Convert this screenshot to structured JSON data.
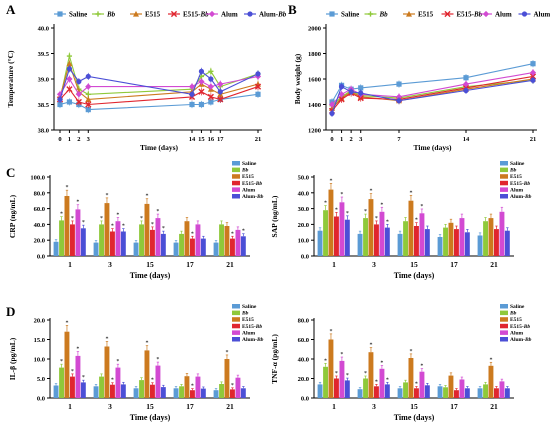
{
  "panel_labels": [
    "A",
    "B",
    "C",
    "D"
  ],
  "groups": [
    "Saline",
    "Bb",
    "E515",
    "E515-Bb",
    "Alum",
    "Alum-Bb"
  ],
  "group_labels": [
    {
      "main": "Saline",
      "italic": ""
    },
    {
      "main": "",
      "italic": "Bb"
    },
    {
      "main": "E515",
      "italic": ""
    },
    {
      "main": "E515-",
      "italic": "Bb"
    },
    {
      "main": "Alum",
      "italic": ""
    },
    {
      "main": "Alum-",
      "italic": "Bb"
    }
  ],
  "colors": {
    "Saline": "#5b9bd5",
    "Bb": "#8fc93a",
    "E515": "#cc7a1f",
    "E515-Bb": "#e0262f",
    "Alum": "#d24ad2",
    "Alum-Bb": "#4b4fd6"
  },
  "chart_data": [
    {
      "id": "temperature",
      "panel": "A",
      "type": "line",
      "xlabel": "Time (days)",
      "ylabel": "Temperature (°C)",
      "x_ticks": [
        "0",
        "1",
        "2",
        "3",
        "14",
        "15",
        "16",
        "17",
        "21"
      ],
      "x_positions": [
        0,
        1,
        2,
        3,
        14,
        15,
        16,
        17,
        21
      ],
      "ylim": [
        38.0,
        40.0
      ],
      "y_ticks": [
        "38.0",
        "38.5",
        "39.0",
        "39.5",
        "40.0"
      ],
      "legend": "top",
      "series": [
        {
          "name": "Saline",
          "values": [
            38.5,
            38.55,
            38.5,
            38.4,
            38.5,
            38.5,
            38.55,
            38.6,
            38.7
          ]
        },
        {
          "name": "Bb",
          "values": [
            38.6,
            39.45,
            38.8,
            38.7,
            38.8,
            39.05,
            39.15,
            38.85,
            39.1
          ]
        },
        {
          "name": "E515",
          "values": [
            38.65,
            39.3,
            38.75,
            38.6,
            38.75,
            38.9,
            38.8,
            38.7,
            38.9
          ]
        },
        {
          "name": "E515-Bb",
          "values": [
            38.6,
            38.8,
            38.55,
            38.5,
            38.65,
            38.75,
            38.65,
            38.6,
            38.85
          ]
        },
        {
          "name": "Alum",
          "values": [
            38.7,
            39.0,
            38.7,
            38.85,
            38.85,
            38.95,
            38.85,
            38.9,
            39.05
          ]
        },
        {
          "name": "Alum-Bb",
          "values": [
            38.6,
            39.2,
            38.95,
            39.05,
            38.7,
            39.15,
            39.0,
            38.75,
            39.1
          ]
        }
      ]
    },
    {
      "id": "body-weight",
      "panel": "B",
      "type": "line",
      "xlabel": "Time (days)",
      "ylabel": "Body weight (g)",
      "x_ticks": [
        "0",
        "1",
        "2",
        "3",
        "7",
        "14",
        "21"
      ],
      "x_positions": [
        0,
        1,
        2,
        3,
        7,
        14,
        21
      ],
      "ylim": [
        1200,
        2000
      ],
      "y_ticks": [
        "1200",
        "1400",
        "1600",
        "1800",
        "2000"
      ],
      "legend": "top",
      "series": [
        {
          "name": "Saline",
          "values": [
            1420,
            1550,
            1520,
            1530,
            1560,
            1610,
            1720
          ]
        },
        {
          "name": "Bb",
          "values": [
            1390,
            1460,
            1510,
            1470,
            1450,
            1540,
            1590
          ]
        },
        {
          "name": "E515",
          "values": [
            1370,
            1450,
            1500,
            1460,
            1430,
            1520,
            1600
          ]
        },
        {
          "name": "E515-Bb",
          "values": [
            1350,
            1440,
            1490,
            1450,
            1440,
            1530,
            1620
          ]
        },
        {
          "name": "Alum",
          "values": [
            1400,
            1480,
            1520,
            1480,
            1460,
            1560,
            1650
          ]
        },
        {
          "name": "Alum-Bb",
          "values": [
            1330,
            1540,
            1500,
            1490,
            1430,
            1510,
            1590
          ]
        }
      ]
    },
    {
      "id": "crp",
      "panel": "C",
      "type": "bar",
      "xlabel": "Time (days)",
      "ylabel": "CRP (ng/mL)",
      "categories": [
        "1",
        "3",
        "15",
        "17",
        "21"
      ],
      "ylim": [
        0,
        100
      ],
      "y_ticks": [
        "0.0",
        "20.0",
        "40.0",
        "60.0",
        "80.0",
        "100.0"
      ],
      "legend": "top-right",
      "series": [
        {
          "name": "Saline",
          "values": [
            18,
            17,
            17,
            17,
            17
          ]
        },
        {
          "name": "Bb",
          "values": [
            45,
            40,
            40,
            28,
            40
          ]
        },
        {
          "name": "E515",
          "values": [
            76,
            67,
            66,
            44,
            38
          ]
        },
        {
          "name": "E515-Bb",
          "values": [
            40,
            31,
            33,
            22,
            22
          ]
        },
        {
          "name": "Alum",
          "values": [
            59,
            44,
            48,
            40,
            33
          ]
        },
        {
          "name": "Alum-Bb",
          "values": [
            35,
            31,
            28,
            22,
            25
          ]
        }
      ],
      "marked": [
        [
          1,
          2,
          3,
          4,
          5
        ],
        [
          1,
          2,
          3,
          4,
          5
        ],
        [
          1,
          2,
          3,
          4,
          5
        ],
        [
          3
        ],
        [
          3,
          5
        ]
      ]
    },
    {
      "id": "sap",
      "panel": "C",
      "type": "bar",
      "xlabel": "Time (days)",
      "ylabel": "SAP (ng/mL)",
      "categories": [
        "1",
        "3",
        "15",
        "17",
        "21"
      ],
      "ylim": [
        0,
        50
      ],
      "y_ticks": [
        "0.0",
        "10.0",
        "20.0",
        "30.0",
        "40.0",
        "50.0"
      ],
      "legend": "top-right",
      "series": [
        {
          "name": "Saline",
          "values": [
            16,
            14,
            14,
            12,
            13
          ]
        },
        {
          "name": "Bb",
          "values": [
            29,
            24,
            22,
            18,
            22
          ]
        },
        {
          "name": "E515",
          "values": [
            42,
            36,
            35,
            21,
            24
          ]
        },
        {
          "name": "E515-Bb",
          "values": [
            25,
            20,
            19,
            17,
            17
          ]
        },
        {
          "name": "Alum",
          "values": [
            34,
            28,
            27,
            24,
            28
          ]
        },
        {
          "name": "Alum-Bb",
          "values": [
            23,
            18,
            17,
            15,
            16
          ]
        }
      ],
      "marked": [
        [
          1,
          2,
          3,
          4,
          5
        ],
        [
          1,
          2,
          3,
          4,
          5
        ],
        [
          2,
          3,
          4
        ],
        [],
        []
      ]
    },
    {
      "id": "il-beta",
      "panel": "D",
      "type": "bar",
      "xlabel": "Time (days)",
      "ylabel": "IL-β (pg/mL)",
      "categories": [
        "1",
        "3",
        "15",
        "17",
        "21"
      ],
      "ylim": [
        0,
        20
      ],
      "y_ticks": [
        "0.0",
        "5.0",
        "10.0",
        "15.0",
        "20.0"
      ],
      "legend": "top-right",
      "series": [
        {
          "name": "Saline",
          "values": [
            3.2,
            3.0,
            2.5,
            2.5,
            2.0
          ]
        },
        {
          "name": "Bb",
          "values": [
            7.8,
            5.5,
            4.6,
            3.0,
            3.6
          ]
        },
        {
          "name": "E515",
          "values": [
            17.0,
            13.2,
            12.2,
            5.6,
            10.0
          ]
        },
        {
          "name": "E515-Bb",
          "values": [
            5.5,
            3.4,
            3.4,
            2.0,
            2.2
          ]
        },
        {
          "name": "Alum",
          "values": [
            10.8,
            7.8,
            8.3,
            5.5,
            5.2
          ]
        },
        {
          "name": "Alum-Bb",
          "values": [
            4.0,
            3.5,
            2.8,
            2.4,
            2.5
          ]
        }
      ],
      "marked": [
        [
          1,
          2,
          3,
          4,
          5
        ],
        [
          2,
          3,
          4
        ],
        [
          2,
          3,
          4
        ],
        [
          3
        ],
        [
          2,
          3
        ]
      ]
    },
    {
      "id": "tnf-alpha",
      "panel": "D",
      "type": "bar",
      "xlabel": "Time (days)",
      "ylabel": "TNF-α (pg/mL)",
      "categories": [
        "1",
        "3",
        "15",
        "17",
        "21"
      ],
      "ylim": [
        0,
        80
      ],
      "y_ticks": [
        "0.0",
        "20.0",
        "40.0",
        "60.0",
        "80.0"
      ],
      "legend": "top-right",
      "series": [
        {
          "name": "Saline",
          "values": [
            14,
            9,
            10,
            12,
            10
          ]
        },
        {
          "name": "Bb",
          "values": [
            32,
            20,
            16,
            11,
            14
          ]
        },
        {
          "name": "E515",
          "values": [
            60,
            47,
            41,
            23,
            33
          ]
        },
        {
          "name": "E515-Bb",
          "values": [
            20,
            12,
            10,
            8,
            10
          ]
        },
        {
          "name": "Alum",
          "values": [
            38,
            30,
            27,
            19,
            17
          ]
        },
        {
          "name": "Alum-Bb",
          "values": [
            18,
            14,
            13,
            10,
            10
          ]
        }
      ],
      "marked": [
        [
          1,
          2,
          3,
          4,
          5
        ],
        [
          1,
          2,
          3,
          4,
          5
        ],
        [
          2,
          3,
          4
        ],
        [],
        [
          2
        ]
      ]
    }
  ]
}
